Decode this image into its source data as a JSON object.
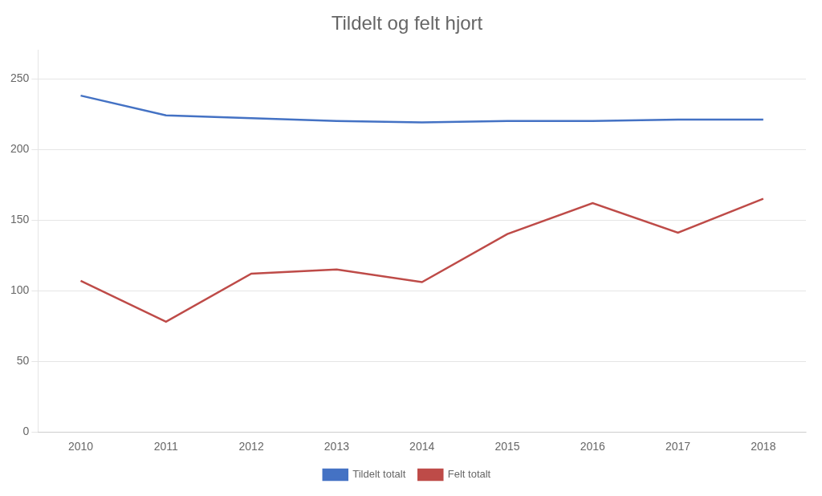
{
  "chart_data": {
    "type": "line",
    "title": "Tildelt og felt hjort",
    "categories": [
      "2010",
      "2011",
      "2012",
      "2013",
      "2014",
      "2015",
      "2016",
      "2017",
      "2018"
    ],
    "series": [
      {
        "name": "Tildelt totalt",
        "color": "#4472C4",
        "values": [
          238,
          224,
          222,
          220,
          219,
          220,
          220,
          221,
          221
        ]
      },
      {
        "name": "Felt totalt",
        "color": "#BE4B48",
        "values": [
          107,
          78,
          112,
          115,
          106,
          140,
          162,
          141,
          165
        ]
      }
    ],
    "ylim": [
      0,
      270
    ],
    "yticks": [
      0,
      50,
      100,
      150,
      200,
      250
    ],
    "grid": true,
    "legend": "bottom"
  }
}
